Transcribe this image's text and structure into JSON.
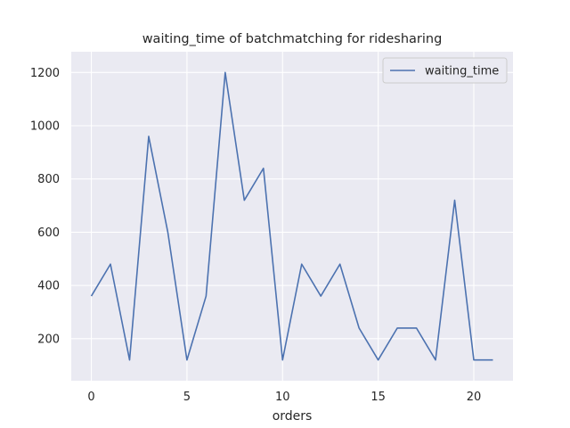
{
  "chart_data": {
    "type": "line",
    "title": "waiting_time of batchmatching for ridesharing",
    "xlabel": "orders",
    "ylabel": "",
    "xlim": [
      -1.05,
      22.05
    ],
    "ylim": [
      42,
      1278
    ],
    "xticks": [
      0,
      5,
      10,
      15,
      20
    ],
    "yticks": [
      200,
      400,
      600,
      800,
      1000,
      1200
    ],
    "grid": true,
    "legend_position": "top-right",
    "series": [
      {
        "name": "waiting_time",
        "color": "#4c72b0",
        "x": [
          0,
          1,
          2,
          3,
          4,
          5,
          6,
          7,
          8,
          9,
          10,
          11,
          12,
          13,
          14,
          15,
          16,
          17,
          18,
          19,
          20,
          21
        ],
        "values": [
          360,
          480,
          120,
          960,
          600,
          120,
          360,
          1200,
          720,
          840,
          120,
          480,
          360,
          480,
          240,
          120,
          240,
          240,
          120,
          720,
          120,
          120
        ]
      }
    ],
    "colors": {
      "plot_background": "#eaeaf2",
      "grid": "#ffffff",
      "text": "#262626"
    }
  }
}
